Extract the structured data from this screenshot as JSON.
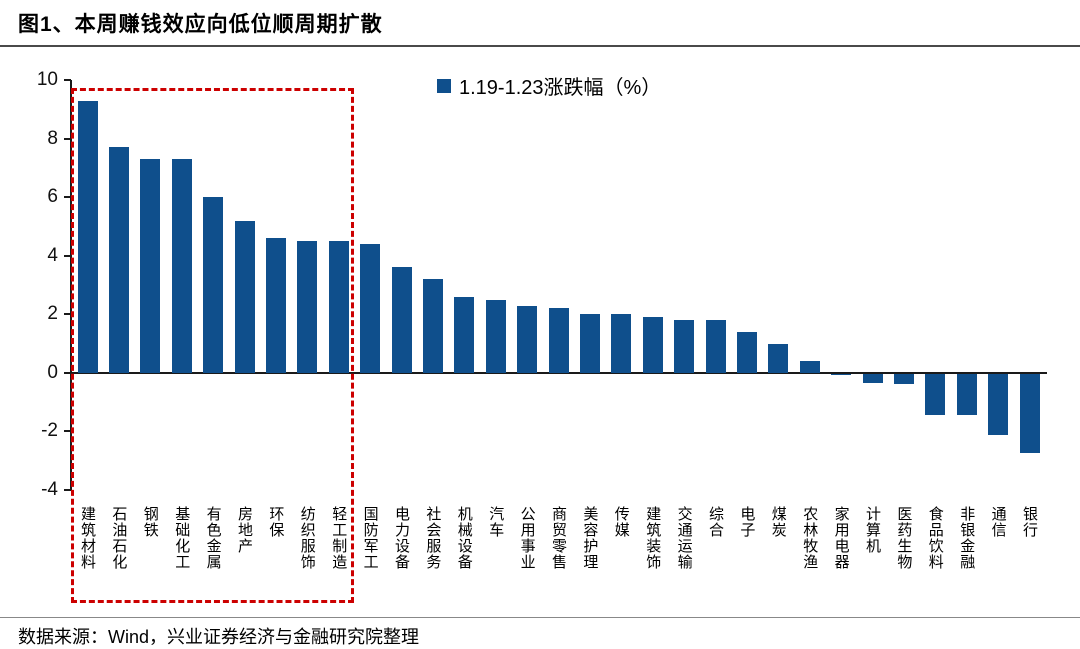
{
  "page": {
    "title": "图1、本周赚钱效应向低位顺周期扩散",
    "source_note": "数据来源：Wind，兴业证券经济与金融研究院整理"
  },
  "chart_data": {
    "type": "bar",
    "title": "图1、本周赚钱效应向低位顺周期扩散",
    "legend": [
      "1.19-1.23涨跌幅（%）"
    ],
    "legend_position": "top-center",
    "grid": false,
    "ylim": [
      -4,
      10
    ],
    "yticks": [
      10,
      8,
      6,
      4,
      2,
      0,
      -2,
      -4
    ],
    "bar_color": "#0f4f8c",
    "highlight_box_color": "#cc0000",
    "highlight_box_range": {
      "from_index": 0,
      "to_index": 8
    },
    "categories": [
      "建筑材料",
      "石油石化",
      "钢铁",
      "基础化工",
      "有色金属",
      "房地产",
      "环保",
      "纺织服饰",
      "轻工制造",
      "国防军工",
      "电力设备",
      "社会服务",
      "机械设备",
      "汽车",
      "公用事业",
      "商贸零售",
      "美容护理",
      "传媒",
      "建筑装饰",
      "交通运输",
      "综合",
      "电子",
      "煤炭",
      "农林牧渔",
      "家用电器",
      "计算机",
      "医药生物",
      "食品饮料",
      "非银金融",
      "通信",
      "银行"
    ],
    "values": [
      9.3,
      7.7,
      7.3,
      7.3,
      6.0,
      5.2,
      4.6,
      4.5,
      4.5,
      4.4,
      3.6,
      3.2,
      2.6,
      2.5,
      2.3,
      2.2,
      2.0,
      2.0,
      1.9,
      1.8,
      1.8,
      1.4,
      1.0,
      0.4,
      -0.05,
      -0.3,
      -0.35,
      -1.4,
      -1.4,
      -2.1,
      -2.7
    ]
  }
}
